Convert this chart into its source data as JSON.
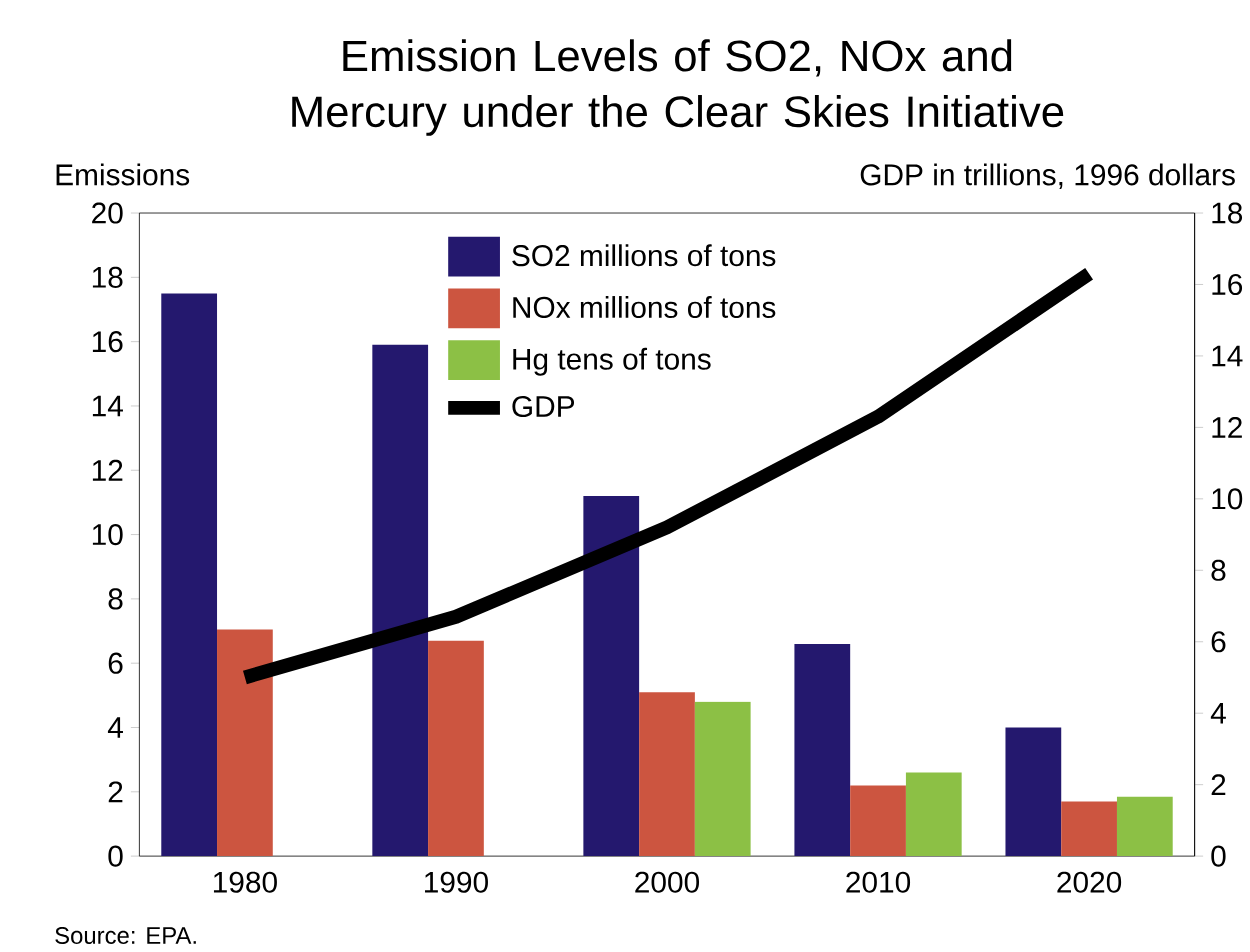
{
  "chart_data": {
    "type": "bar",
    "title": "Emission Levels of SO2, NOx and Mercury under the Clear Skies Initiative",
    "ylabel": "Emissions",
    "y2label": "GDP in trillions, 1996 dollars",
    "annotations": [
      "Source: EPA."
    ],
    "legend": "top",
    "categories": [
      "1980",
      "1990",
      "2000",
      "2010",
      "2020"
    ],
    "ylim": [
      0,
      20
    ],
    "yticks": [
      0,
      2,
      4,
      6,
      8,
      10,
      12,
      14,
      16,
      18,
      20
    ],
    "y2lim": [
      0,
      18
    ],
    "y2ticks": [
      0,
      2,
      4,
      6,
      8,
      10,
      12,
      14,
      16,
      18
    ],
    "series": [
      {
        "name": "SO2 millions of tons",
        "color": "#24186e",
        "values": [
          17.5,
          15.9,
          11.2,
          6.6,
          4.0
        ]
      },
      {
        "name": "NOx millions of tons",
        "color": "#cc5540",
        "values": [
          7.05,
          6.7,
          5.1,
          2.2,
          1.7
        ]
      },
      {
        "name": "Hg tens of tons",
        "color": "#8cc045",
        "values": [
          null,
          null,
          4.8,
          2.6,
          1.85
        ]
      },
      {
        "name": "GDP",
        "type": "line",
        "axis": "y2",
        "color": "#000000",
        "values": [
          5.0,
          6.7,
          9.2,
          12.3,
          16.3
        ]
      }
    ]
  }
}
